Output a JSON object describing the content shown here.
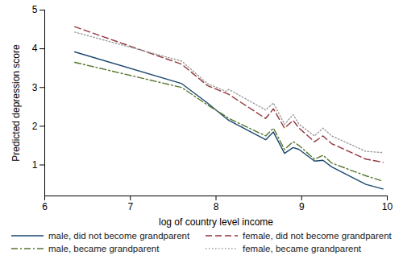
{
  "chart_data": {
    "type": "line",
    "x_label": "log of country level income",
    "y_label": "Predicted depression score",
    "x": [
      6.35,
      7.6,
      7.9,
      8.12,
      8.15,
      8.58,
      8.67,
      8.8,
      8.9,
      8.97,
      9.15,
      9.25,
      9.35,
      9.75,
      9.95
    ],
    "xlim": [
      6,
      10
    ],
    "xticks": [
      6,
      7,
      8,
      9,
      10
    ],
    "ylim": [
      0.2,
      5
    ],
    "yticks": [
      1,
      2,
      3,
      4,
      5
    ],
    "grid": false,
    "legend": "bottom",
    "series": [
      {
        "name": "male, did not become grandparent",
        "color": "#1a476f",
        "line_style": "solid",
        "values": [
          3.92,
          3.1,
          2.6,
          2.2,
          2.15,
          1.65,
          1.85,
          1.3,
          1.45,
          1.4,
          1.1,
          1.12,
          0.95,
          0.5,
          0.38
        ]
      },
      {
        "name": "female, did not become grandparent",
        "color": "#90353b",
        "line_style": "dashed",
        "values": [
          4.57,
          3.6,
          3.05,
          2.85,
          2.82,
          2.2,
          2.45,
          1.95,
          2.15,
          1.95,
          1.6,
          1.75,
          1.55,
          1.15,
          1.07
        ]
      },
      {
        "name": "male, became grandparent",
        "color": "#55752f",
        "line_style": "dashdot",
        "values": [
          3.65,
          3.0,
          2.55,
          2.25,
          2.2,
          1.75,
          1.95,
          1.4,
          1.6,
          1.5,
          1.15,
          1.25,
          1.05,
          0.72,
          0.58
        ]
      },
      {
        "name": "female, became grandparent",
        "color": "#9c9c9c",
        "line_style": "dotted",
        "values": [
          4.43,
          3.68,
          3.1,
          2.9,
          2.95,
          2.42,
          2.6,
          2.05,
          2.3,
          2.05,
          1.75,
          1.95,
          1.75,
          1.35,
          1.32
        ]
      }
    ]
  }
}
